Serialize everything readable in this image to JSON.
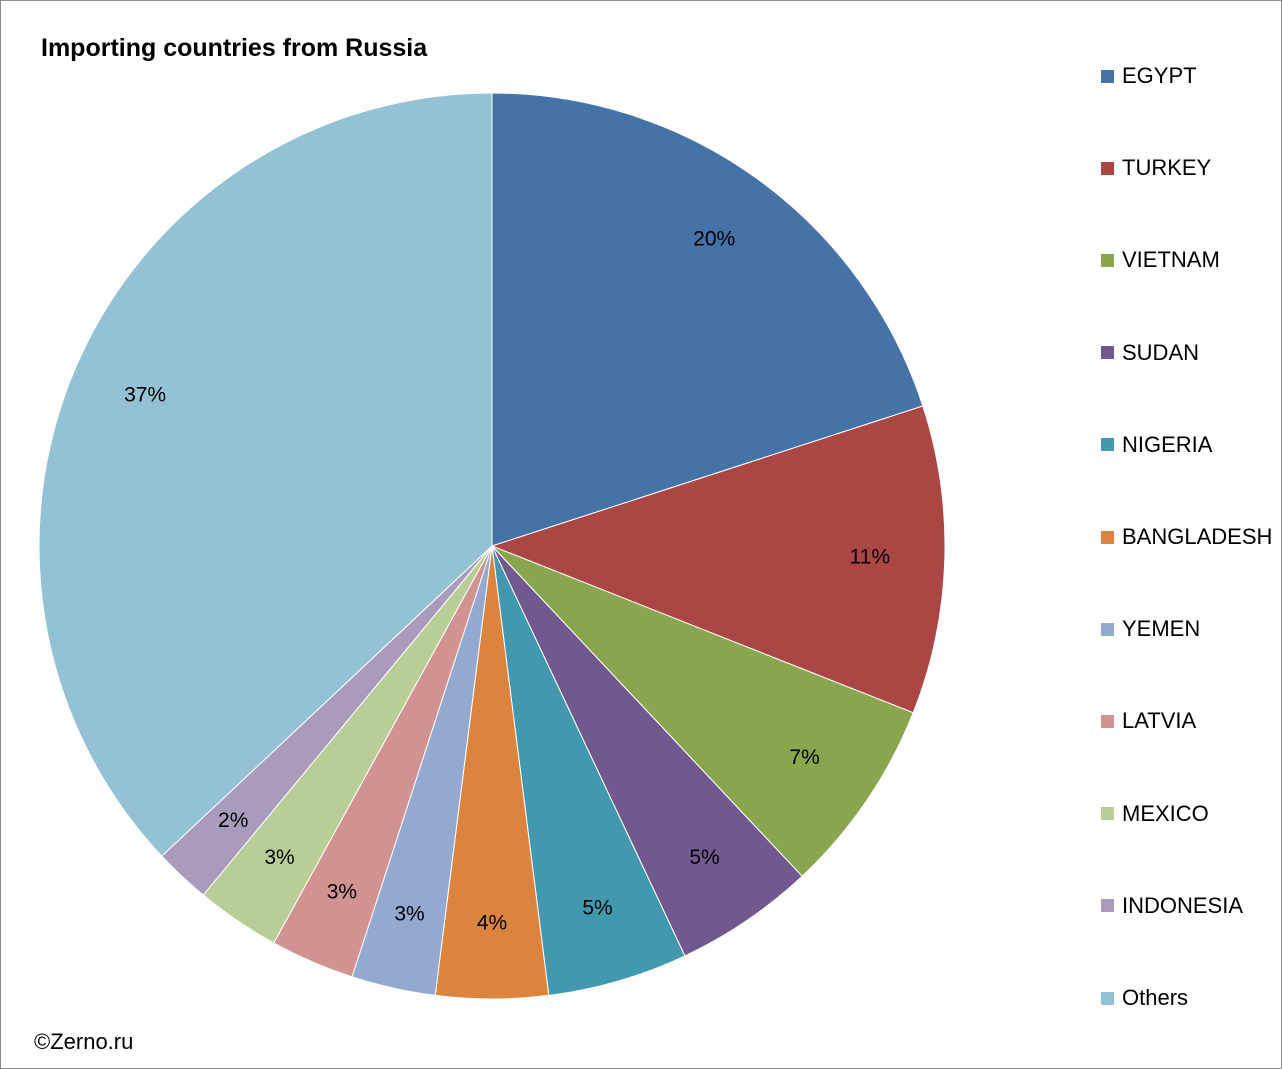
{
  "chart_data": {
    "type": "pie",
    "title": "Importing countries from Russia",
    "labels": [
      "EGYPT",
      "TURKEY",
      "VIETNAM",
      "SUDAN",
      "NIGERIA",
      "BANGLADESH",
      "YEMEN",
      "LATVIA",
      "MEXICO",
      "INDONESIA",
      "Others"
    ],
    "values": [
      20,
      11,
      7,
      5,
      5,
      4,
      3,
      3,
      3,
      2,
      37
    ],
    "value_labels": [
      "20%",
      "11%",
      "7%",
      "5%",
      "5%",
      "4%",
      "3%",
      "3%",
      "3%",
      "2%",
      "37%"
    ],
    "unit": "%",
    "colors": [
      "#4572a7",
      "#aa4643",
      "#89a54e",
      "#71588f",
      "#4198af",
      "#db843d",
      "#93a9cf",
      "#d19392",
      "#b9cd96",
      "#a99bbd",
      "#92c2d4"
    ],
    "legend_position": "right",
    "start": "12 o'clock, clockwise"
  },
  "footer": {
    "copyright": "©Zerno.ru"
  }
}
